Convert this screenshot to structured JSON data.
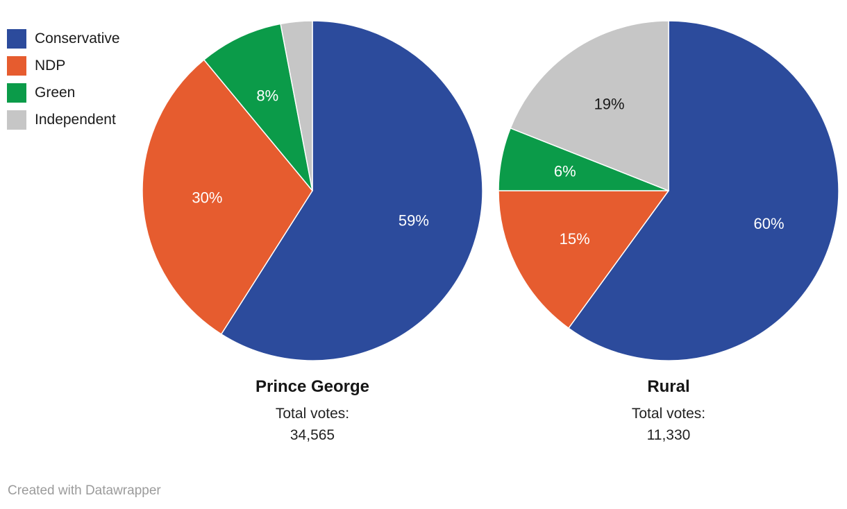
{
  "legend": {
    "items": [
      {
        "label": "Conservative",
        "color": "#2c4b9c"
      },
      {
        "label": "NDP",
        "color": "#e65c2f"
      },
      {
        "label": "Green",
        "color": "#0b9b49"
      },
      {
        "label": "Independent",
        "color": "#c6c6c6"
      }
    ]
  },
  "chart_data": [
    {
      "type": "pie",
      "title": "Prince George",
      "total_label": "Total votes:",
      "total_value": "34,565",
      "categories": [
        "Conservative",
        "NDP",
        "Green",
        "Independent"
      ],
      "values": [
        59,
        30,
        8,
        3
      ],
      "unit": "%",
      "start_angle_deg": 0,
      "direction": "clockwise",
      "slice_labels": [
        "59%",
        "30%",
        "8%",
        ""
      ],
      "slice_label_colors": [
        "#ffffff",
        "#ffffff",
        "#ffffff",
        ""
      ]
    },
    {
      "type": "pie",
      "title": "Rural",
      "total_label": "Total votes:",
      "total_value": "11,330",
      "categories": [
        "Conservative",
        "NDP",
        "Green",
        "Independent"
      ],
      "values": [
        60,
        15,
        6,
        19
      ],
      "unit": "%",
      "start_angle_deg": 0,
      "direction": "clockwise",
      "slice_labels": [
        "60%",
        "15%",
        "6%",
        "19%"
      ],
      "slice_label_colors": [
        "#ffffff",
        "#ffffff",
        "#ffffff",
        "#1a1a1a"
      ]
    }
  ],
  "footer": {
    "credit": "Created with Datawrapper"
  }
}
